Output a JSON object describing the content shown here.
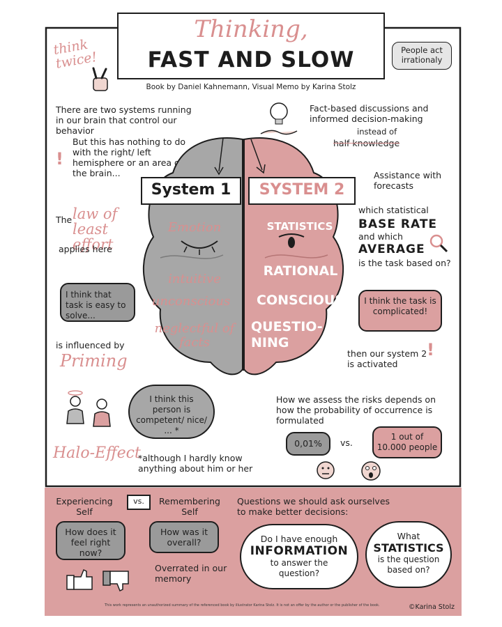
{
  "title": {
    "script": "Thinking,",
    "main": "FAST AND SLOW",
    "byline": "Book by Daniel Kahnemann, Visual Memo by Karina Stolz"
  },
  "corner_left": "think twice!",
  "corner_right": "People act irrationaly",
  "intro": {
    "two_systems": "There are two systems running in our brain that control our behavior",
    "not_left_right": "But this has nothing to do with the right/ left hemisphere or an area of the brain...",
    "fact_based": "Fact-based discussions and informed decision-making",
    "instead_of": "instead of",
    "half_knowledge": "half knowledge"
  },
  "system1": {
    "label": "System 1",
    "words": [
      "Emotion",
      "intuitive",
      "unconscious",
      "neglectful of facts"
    ]
  },
  "system2": {
    "label": "SYSTEM 2",
    "words": [
      "STATISTICS",
      "RATIONAL",
      "CONSCIOUS",
      "QUESTIO-NING"
    ]
  },
  "left_notes": {
    "law_pre": "The",
    "law_script": "law of least effort",
    "law_post": "applies here",
    "easy_bubble": "I think that task is easy to solve...",
    "influenced": "is influenced by",
    "priming": "Priming"
  },
  "right_notes": {
    "assistance": "Assistance with forecasts",
    "which_stat": "which statistical",
    "base_rate": "BASE RATE",
    "and_which": "and which",
    "average": "AVERAGE",
    "task_based": "is the task based on?",
    "complicated_bubble": "I think the task is complicated!",
    "activated": "then our system 2 is activated"
  },
  "halo": {
    "thought": "I think this person is competent/ nice/ ... *",
    "label": "Halo-Effect",
    "footnote": "*although I hardly know anything about him or her"
  },
  "risk": {
    "text": "How we assess the risks depends on how the probability of occurrence is formulated",
    "percent": "0,01%",
    "vs": "vs.",
    "people": "1 out of 10.000 people"
  },
  "bottom": {
    "experiencing": "Experiencing Self",
    "vs": "vs.",
    "remembering": "Remembering Self",
    "feel_bubble": "How does it feel right now?",
    "overall_bubble": "How was it overall?",
    "overrated": "Overrated in our memory",
    "questions": "Questions we should ask ourselves to make better decisions:",
    "info_pre": "Do I have enough",
    "info_bold": "INFORMATION",
    "info_post": "to answer the question?",
    "what": "What",
    "statistics": "STATISTICS",
    "stats_post": "is the question based on?",
    "disclaimer": "This work represents an unauthorized summary of the referenced book by illustrator Karina Stolz. It is not an offer by the author or the publisher of the book.",
    "copyright": "©Karina Stolz"
  },
  "colors": {
    "accent_pink": "#d98f8f",
    "pink_panel": "#dba0a0",
    "brain_gray": "#a7a7a7",
    "ink": "#1d1d1d"
  }
}
